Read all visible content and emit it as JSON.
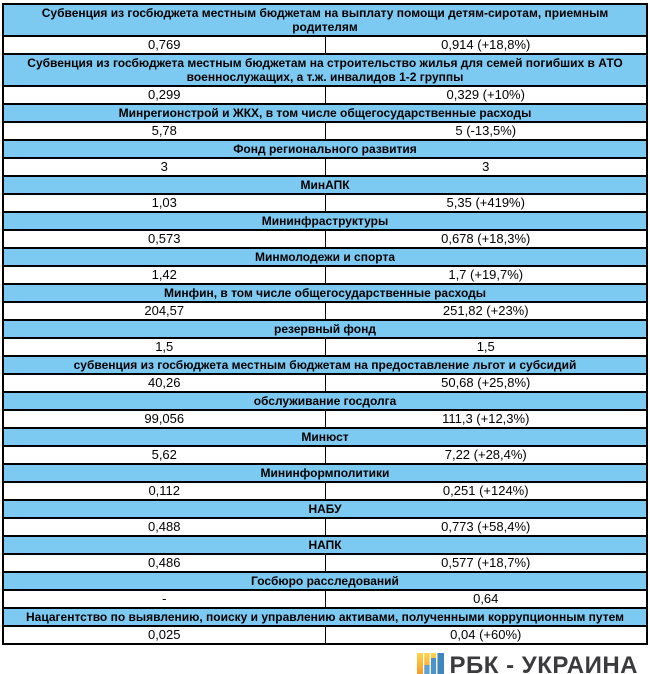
{
  "chart_data": {
    "type": "table",
    "title": "",
    "rows": [
      {
        "category": "Субвенция из госбюджета местным бюджетам на выплату помощи детям-сиротам, приемным родителям",
        "values": [
          "0,769",
          "0,914 (+18,8%)"
        ]
      },
      {
        "category": "Субвенция из госбюджета местным бюджетам на строительство жилья для семей погибших в АТО военнослужащих, а т.ж. инвалидов 1-2 группы",
        "values": [
          "0,299",
          "0,329 (+10%)"
        ]
      },
      {
        "category": "Минрегионстрой и ЖКХ, в том числе общегосударственные расходы",
        "values": [
          "5,78",
          "5 (-13,5%)"
        ]
      },
      {
        "category": "Фонд регионального развития",
        "values": [
          "3",
          "3"
        ]
      },
      {
        "category": "МинАПК",
        "values": [
          "1,03",
          "5,35 (+419%)"
        ]
      },
      {
        "category": "Мининфраструктуры",
        "values": [
          "0,573",
          "0,678 (+18,3%)"
        ]
      },
      {
        "category": "Минмолодежи и спорта",
        "values": [
          "1,42",
          "1,7 (+19,7%)"
        ]
      },
      {
        "category": "Минфин, в том числе общегосударственные расходы",
        "values": [
          "204,57",
          "251,82 (+23%)"
        ]
      },
      {
        "category": "резервный фонд",
        "values": [
          "1,5",
          "1,5"
        ]
      },
      {
        "category": "субвенция из госбюджета местным бюджетам на предоставление льгот и субсидий",
        "values": [
          "40,26",
          "50,68 (+25,8%)"
        ]
      },
      {
        "category": "обслуживание госдолга",
        "values": [
          "99,056",
          "111,3 (+12,3%)"
        ]
      },
      {
        "category": "Минюст",
        "values": [
          "5,62",
          "7,22 (+28,4%)"
        ]
      },
      {
        "category": "Мининформполитики",
        "values": [
          "0,112",
          "0,251 (+124%)"
        ]
      },
      {
        "category": "НАБУ",
        "values": [
          "0,488",
          "0,773 (+58,4%)"
        ]
      },
      {
        "category": "НАПК",
        "values": [
          "0,486",
          "0,577 (+18,7%)"
        ]
      },
      {
        "category": "Госбюро расследований",
        "values": [
          "-",
          "0,64"
        ]
      },
      {
        "category": "Нацагентство по выявлению, поиску и управлению активами, полученными коррупционным путем",
        "values": [
          "0,025",
          "0,04 (+60%)"
        ]
      }
    ]
  },
  "logo": {
    "text": "РБК - УКРАИНА"
  },
  "colors": {
    "header_bg": "#7CC9F2",
    "border": "#000000",
    "logo_text": "#3B3B3D",
    "logo_yellow_top": "#FFD54F",
    "logo_orange_bottom": "#F28A1E",
    "logo_bar_blue_1": "#5AA2D8",
    "logo_bar_blue_2": "#4B94CB",
    "logo_bar_blue_3": "#3E86BE"
  }
}
